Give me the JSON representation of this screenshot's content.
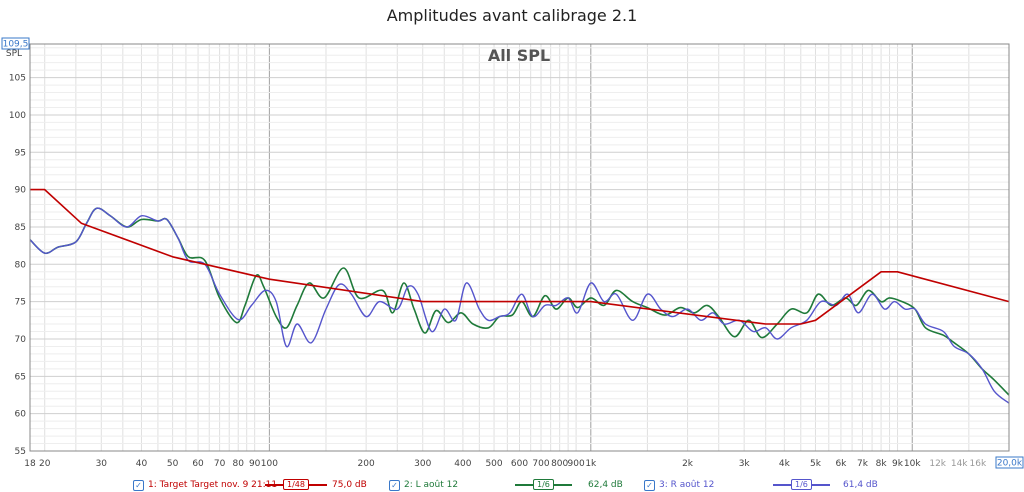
{
  "window": {
    "title": "Amplitudes avant calibrage 2.1"
  },
  "colors": {
    "target": "#c00000",
    "left": "#1f7a3a",
    "right": "#5555cc",
    "grid": "#e0e0e0",
    "grid_major": "#a0a0a0",
    "axis_box": "#3a78c9"
  },
  "chart_data": {
    "type": "line",
    "title": "All SPL",
    "ylabel": "SPL",
    "y_axis": {
      "range": [
        55,
        109.5
      ],
      "ticks": [
        55,
        60,
        65,
        70,
        75,
        80,
        85,
        90,
        95,
        100,
        105
      ],
      "top_value_label": "109,5"
    },
    "x_axis": {
      "scale": "log",
      "range": [
        18,
        20000
      ],
      "end_value_label": "20,0k",
      "tick_values": [
        18,
        20,
        30,
        40,
        50,
        60,
        70,
        80,
        90,
        100,
        200,
        300,
        400,
        500,
        600,
        700,
        800,
        900,
        1000,
        2000,
        3000,
        4000,
        5000,
        6000,
        7000,
        8000,
        9000,
        10000,
        12000,
        14000,
        16000
      ],
      "tick_labels": [
        "18",
        "20",
        "30",
        "40",
        "50",
        "60",
        "70",
        "80",
        "90",
        "100",
        "200",
        "300",
        "400",
        "500",
        "600",
        "700",
        "800",
        "900",
        "1k",
        "2k",
        "3k",
        "4k",
        "5k",
        "6k",
        "7k",
        "8k",
        "9k",
        "10k",
        "12k",
        "14k",
        "16k"
      ],
      "light_ticks": [
        "12k",
        "14k",
        "16k"
      ]
    },
    "grid": true,
    "series": [
      {
        "name": "1: Target Target nov. 9 21:11",
        "smoothing": "1/48",
        "level": "75,0 dB",
        "points": [
          [
            18,
            90
          ],
          [
            20,
            90
          ],
          [
            26,
            85.5
          ],
          [
            50,
            81
          ],
          [
            100,
            78
          ],
          [
            300,
            75
          ],
          [
            1000,
            75
          ],
          [
            3500,
            72
          ],
          [
            4500,
            72
          ],
          [
            5000,
            72.5
          ],
          [
            8000,
            79
          ],
          [
            9000,
            79
          ],
          [
            20000,
            75
          ]
        ]
      },
      {
        "name": "2: L août 12",
        "smoothing": "1/6",
        "level": "62,4 dB",
        "points": [
          [
            18,
            83.3
          ],
          [
            20,
            81.5
          ],
          [
            22,
            82.3
          ],
          [
            25,
            83
          ],
          [
            27,
            85.5
          ],
          [
            29,
            87.5
          ],
          [
            32,
            86.5
          ],
          [
            36,
            85
          ],
          [
            40,
            86
          ],
          [
            45,
            85.8
          ],
          [
            48,
            86
          ],
          [
            52,
            83.5
          ],
          [
            56,
            81
          ],
          [
            63,
            80.5
          ],
          [
            70,
            75.5
          ],
          [
            79,
            72.2
          ],
          [
            84,
            74.5
          ],
          [
            91,
            78.5
          ],
          [
            96,
            77
          ],
          [
            105,
            73
          ],
          [
            113,
            71.5
          ],
          [
            122,
            74.5
          ],
          [
            133,
            77.5
          ],
          [
            148,
            75.5
          ],
          [
            170,
            79.5
          ],
          [
            190,
            75.5
          ],
          [
            225,
            76.5
          ],
          [
            242,
            73.5
          ],
          [
            262,
            77.5
          ],
          [
            282,
            74
          ],
          [
            305,
            70.8
          ],
          [
            330,
            73.8
          ],
          [
            360,
            72.2
          ],
          [
            395,
            73.5
          ],
          [
            430,
            72
          ],
          [
            480,
            71.5
          ],
          [
            520,
            73
          ],
          [
            570,
            73.2
          ],
          [
            610,
            75
          ],
          [
            660,
            73
          ],
          [
            720,
            75.8
          ],
          [
            780,
            74
          ],
          [
            850,
            75.5
          ],
          [
            910,
            74.2
          ],
          [
            1000,
            75.5
          ],
          [
            1100,
            74.5
          ],
          [
            1200,
            76.5
          ],
          [
            1350,
            75
          ],
          [
            1500,
            74.2
          ],
          [
            1700,
            73.2
          ],
          [
            1900,
            74.2
          ],
          [
            2100,
            73.5
          ],
          [
            2300,
            74.5
          ],
          [
            2500,
            73
          ],
          [
            2800,
            70.3
          ],
          [
            3100,
            72.5
          ],
          [
            3400,
            70.2
          ],
          [
            3800,
            72
          ],
          [
            4200,
            74
          ],
          [
            4700,
            73.5
          ],
          [
            5100,
            76
          ],
          [
            5600,
            74.5
          ],
          [
            6200,
            75.5
          ],
          [
            6700,
            74.5
          ],
          [
            7300,
            76.5
          ],
          [
            8000,
            75
          ],
          [
            8500,
            75.5
          ],
          [
            9300,
            75
          ],
          [
            10200,
            74
          ],
          [
            11000,
            71.5
          ],
          [
            12500,
            70.5
          ],
          [
            13500,
            69.5
          ],
          [
            15000,
            68
          ],
          [
            16500,
            66
          ],
          [
            18000,
            64.5
          ],
          [
            20000,
            62.5
          ]
        ]
      },
      {
        "name": "3: R août 12",
        "smoothing": "1/6",
        "level": "61,4 dB",
        "points": [
          [
            18,
            83.3
          ],
          [
            20,
            81.5
          ],
          [
            22,
            82.3
          ],
          [
            25,
            83
          ],
          [
            27,
            85.5
          ],
          [
            29,
            87.5
          ],
          [
            32,
            86.5
          ],
          [
            36,
            85
          ],
          [
            40,
            86.5
          ],
          [
            45,
            85.8
          ],
          [
            48,
            86
          ],
          [
            52,
            83.5
          ],
          [
            56,
            80.5
          ],
          [
            63,
            80
          ],
          [
            70,
            76
          ],
          [
            80,
            72.6
          ],
          [
            88,
            74.5
          ],
          [
            97,
            76.5
          ],
          [
            105,
            75
          ],
          [
            113,
            69
          ],
          [
            122,
            72
          ],
          [
            135,
            69.5
          ],
          [
            150,
            74
          ],
          [
            165,
            77.3
          ],
          [
            180,
            76
          ],
          [
            200,
            73
          ],
          [
            220,
            75
          ],
          [
            250,
            74
          ],
          [
            270,
            77
          ],
          [
            290,
            76
          ],
          [
            320,
            71
          ],
          [
            350,
            74
          ],
          [
            380,
            72.5
          ],
          [
            410,
            77.5
          ],
          [
            450,
            74
          ],
          [
            480,
            72.5
          ],
          [
            520,
            73
          ],
          [
            560,
            73.5
          ],
          [
            610,
            76
          ],
          [
            660,
            73
          ],
          [
            720,
            74.5
          ],
          [
            780,
            74.5
          ],
          [
            850,
            75.5
          ],
          [
            910,
            73.5
          ],
          [
            1000,
            77.5
          ],
          [
            1100,
            75
          ],
          [
            1200,
            76
          ],
          [
            1350,
            72.5
          ],
          [
            1500,
            76
          ],
          [
            1650,
            74
          ],
          [
            1800,
            73
          ],
          [
            2000,
            74
          ],
          [
            2200,
            72.5
          ],
          [
            2400,
            73.5
          ],
          [
            2600,
            72
          ],
          [
            2900,
            72.5
          ],
          [
            3200,
            71
          ],
          [
            3500,
            71.5
          ],
          [
            3800,
            70
          ],
          [
            4200,
            71.5
          ],
          [
            4700,
            72.5
          ],
          [
            5200,
            75
          ],
          [
            5800,
            74.5
          ],
          [
            6300,
            76
          ],
          [
            6800,
            73.5
          ],
          [
            7500,
            76
          ],
          [
            8200,
            74
          ],
          [
            8800,
            75
          ],
          [
            9500,
            74
          ],
          [
            10200,
            74
          ],
          [
            11000,
            72
          ],
          [
            12500,
            71
          ],
          [
            13500,
            69
          ],
          [
            15000,
            68
          ],
          [
            16500,
            66
          ],
          [
            18000,
            63
          ],
          [
            20000,
            61.4
          ]
        ]
      }
    ],
    "legend_position": "bottom"
  },
  "legend": [
    {
      "label": "1: Target Target nov. 9 21:11",
      "smoothing": "1/48",
      "value": "75,0 dB"
    },
    {
      "label": "2: L août 12",
      "smoothing": "1/6",
      "value": "62,4 dB"
    },
    {
      "label": "3: R août 12",
      "smoothing": "1/6",
      "value": "61,4 dB"
    }
  ]
}
